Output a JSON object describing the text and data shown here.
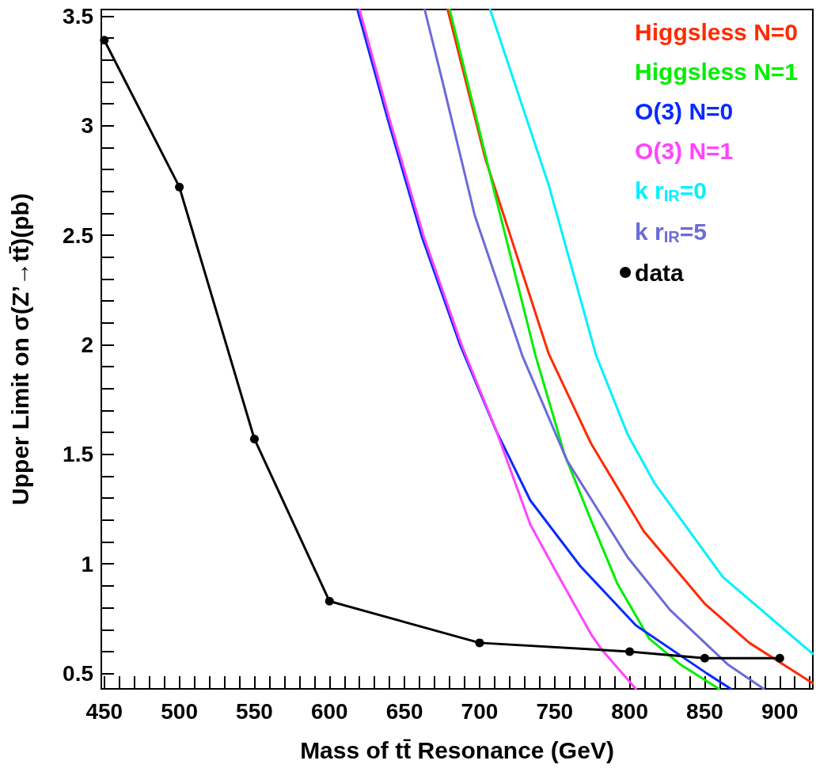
{
  "chart_data": {
    "type": "line",
    "xlabel": "Mass of tt̄ Resonance (GeV)",
    "ylabel": "Upper Limit on σ(Z’→tt̄)(pb)",
    "xlim": [
      448,
      922
    ],
    "ylim": [
      0.43,
      3.53
    ],
    "xticks": [
      450,
      {
        "value": 460,
        "label": null
      },
      {
        "value": 470,
        "label": null
      },
      {
        "value": 480,
        "label": null
      },
      {
        "value": 490,
        "label": null
      },
      500,
      {
        "value": 510,
        "label": null
      },
      {
        "value": 520,
        "label": null
      },
      {
        "value": 530,
        "label": null
      },
      {
        "value": 540,
        "label": null
      },
      550,
      {
        "value": 560,
        "label": null
      },
      {
        "value": 570,
        "label": null
      },
      {
        "value": 580,
        "label": null
      },
      {
        "value": 590,
        "label": null
      },
      600,
      {
        "value": 610,
        "label": null
      },
      {
        "value": 620,
        "label": null
      },
      {
        "value": 630,
        "label": null
      },
      {
        "value": 640,
        "label": null
      },
      650,
      {
        "value": 660,
        "label": null
      },
      {
        "value": 670,
        "label": null
      },
      {
        "value": 680,
        "label": null
      },
      {
        "value": 690,
        "label": null
      },
      700,
      {
        "value": 710,
        "label": null
      },
      {
        "value": 720,
        "label": null
      },
      {
        "value": 730,
        "label": null
      },
      {
        "value": 740,
        "label": null
      },
      750,
      {
        "value": 760,
        "label": null
      },
      {
        "value": 770,
        "label": null
      },
      {
        "value": 780,
        "label": null
      },
      {
        "value": 790,
        "label": null
      },
      800,
      {
        "value": 810,
        "label": null
      },
      {
        "value": 820,
        "label": null
      },
      {
        "value": 830,
        "label": null
      },
      {
        "value": 840,
        "label": null
      },
      850,
      {
        "value": 860,
        "label": null
      },
      {
        "value": 870,
        "label": null
      },
      {
        "value": 880,
        "label": null
      },
      {
        "value": 890,
        "label": null
      },
      900,
      {
        "value": 910,
        "label": null
      },
      {
        "value": 920,
        "label": null
      }
    ],
    "yticks": [
      0.5,
      {
        "value": 0.6,
        "label": null
      },
      {
        "value": 0.7,
        "label": null
      },
      {
        "value": 0.8,
        "label": null
      },
      {
        "value": 0.9,
        "label": null
      },
      1,
      {
        "value": 1.1,
        "label": null
      },
      {
        "value": 1.2,
        "label": null
      },
      {
        "value": 1.3,
        "label": null
      },
      {
        "value": 1.4,
        "label": null
      },
      1.5,
      {
        "value": 1.6,
        "label": null
      },
      {
        "value": 1.7,
        "label": null
      },
      {
        "value": 1.8,
        "label": null
      },
      {
        "value": 1.9,
        "label": null
      },
      2,
      {
        "value": 2.1,
        "label": null
      },
      {
        "value": 2.2,
        "label": null
      },
      {
        "value": 2.3,
        "label": null
      },
      {
        "value": 2.4,
        "label": null
      },
      2.5,
      {
        "value": 2.6,
        "label": null
      },
      {
        "value": 2.7,
        "label": null
      },
      {
        "value": 2.8,
        "label": null
      },
      {
        "value": 2.9,
        "label": null
      },
      3,
      {
        "value": 3.1,
        "label": null
      },
      {
        "value": 3.2,
        "label": null
      },
      {
        "value": 3.3,
        "label": null
      },
      {
        "value": 3.4,
        "label": null
      },
      3.5
    ],
    "grid": false,
    "legend": "top right",
    "line_style": "solid",
    "series": [
      {
        "name": "Higgsless N=0",
        "color": "#ff2a00",
        "marker": "none",
        "x": [
          678.7,
          703.8,
          746,
          774.2,
          809.3,
          849.8,
          879.7,
          921.9
        ],
        "values": [
          3.53,
          2.85,
          1.96,
          1.55,
          1.15,
          0.82,
          0.64,
          0.456
        ]
      },
      {
        "name": "Higgsless N=1",
        "color": "#00ee00",
        "marker": "none",
        "x": [
          680.1,
          710.9,
          737.3,
          756.6,
          774.2,
          791.8,
          812.9,
          834,
          859.5
        ],
        "values": [
          3.53,
          2.67,
          1.95,
          1.5,
          1.2,
          0.91,
          0.66,
          0.54,
          0.43
        ]
      },
      {
        "name": "O(3) N=0",
        "color": "#0a2aff",
        "marker": "none",
        "x": [
          618.6,
          638.8,
          661.7,
          687,
          710.9,
          733.8,
          767.1,
          804.1,
          851.5,
          867.4
        ],
        "values": [
          3.53,
          3.03,
          2.49,
          2.0,
          1.61,
          1.29,
          0.99,
          0.72,
          0.5,
          0.43
        ]
      },
      {
        "name": "O(3) N=1",
        "color": "#ff44ff",
        "marker": "none",
        "x": [
          620,
          640,
          663,
          688,
          711,
          733.8,
          751.3,
          774.2,
          781.2,
          804.1
        ],
        "values": [
          3.53,
          3.03,
          2.49,
          2.0,
          1.61,
          1.18,
          0.96,
          0.68,
          0.61,
          0.43
        ]
      },
      {
        "name": "k r$_{IR}$=0",
        "color": "#00f0ff",
        "marker": "none",
        "x": [
          707,
          746,
          777.7,
          798.7,
          816.4,
          862.1,
          921.9
        ],
        "values": [
          3.53,
          2.73,
          1.95,
          1.59,
          1.37,
          0.94,
          0.59
        ]
      },
      {
        "name": "k r$_{IR}$=5",
        "color": "#6b6bd8",
        "marker": "none",
        "x": [
          663.4,
          675.7,
          696.8,
          728.5,
          758.4,
          798.7,
          826.9,
          865.6,
          889.3
        ],
        "values": [
          3.53,
          3.19,
          2.59,
          1.95,
          1.47,
          1.03,
          0.79,
          0.54,
          0.43
        ]
      },
      {
        "name": "data",
        "color": "#000000",
        "marker": "circle",
        "x": [
          450,
          500,
          550,
          600,
          700,
          800,
          850,
          900
        ],
        "values": [
          3.39,
          2.72,
          1.57,
          0.83,
          0.64,
          0.6,
          0.57,
          0.57
        ]
      }
    ]
  }
}
